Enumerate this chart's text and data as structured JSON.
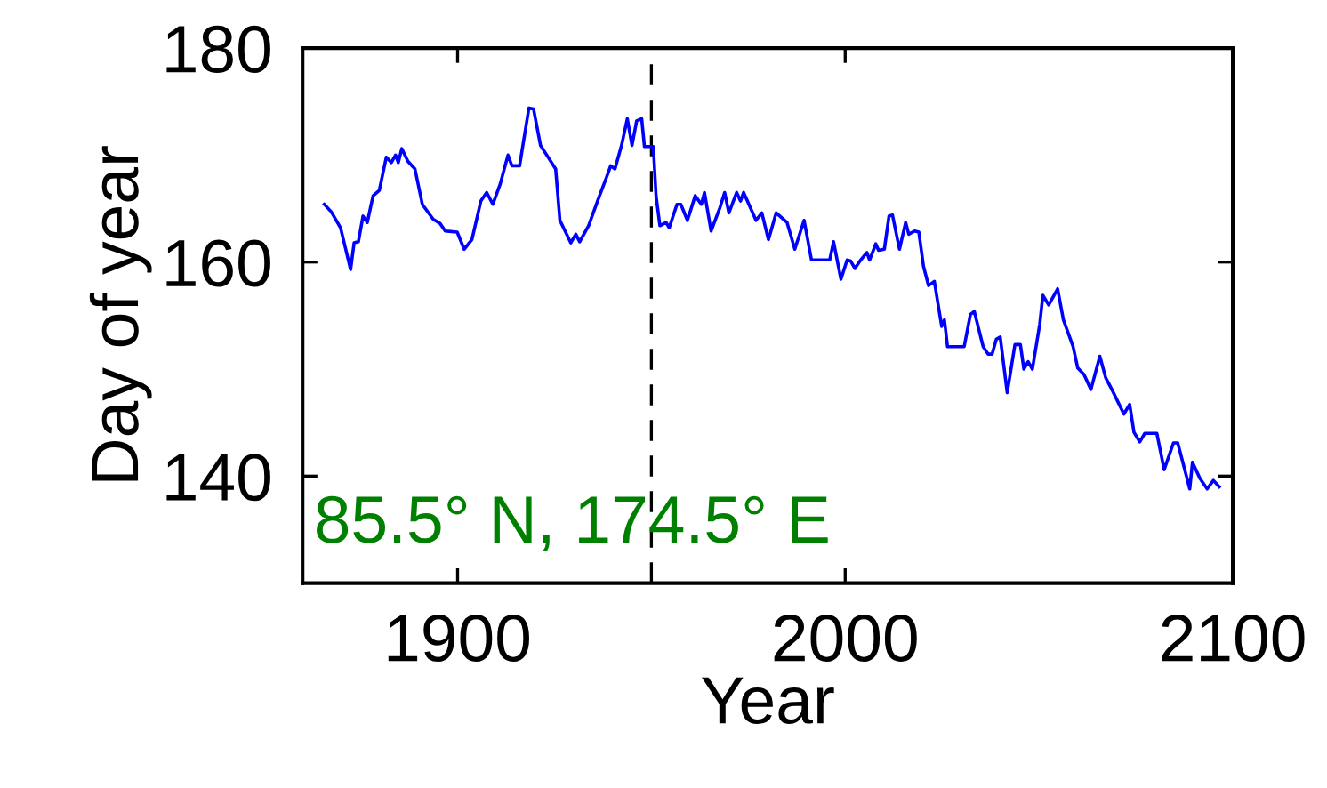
{
  "chart_data": {
    "type": "line",
    "xlabel": "Year",
    "ylabel": "Day of year",
    "xlim": [
      1860,
      2100
    ],
    "xticks": [
      1900,
      2000,
      2100
    ],
    "ylim": [
      130,
      180
    ],
    "yticks": [
      140,
      160,
      180
    ],
    "grid": false,
    "legend": false,
    "line_style": "solid",
    "marker": "none",
    "ref_lines": [
      {
        "axis": "x",
        "value": 1950,
        "color": "#000000",
        "line_style": "dashed"
      }
    ],
    "annotations": [
      "85.5° N, 174.5° E"
    ],
    "series": [
      {
        "color": "#0000ff",
        "x": [
          1865.6,
          1867.4,
          1869.8,
          1872.4,
          1873.3,
          1874.4,
          1875.6,
          1876.7,
          1878.2,
          1879.8,
          1881.6,
          1882.9,
          1884,
          1884.7,
          1885.6,
          1887.2,
          1889,
          1890.9,
          1893.7,
          1895.5,
          1896.8,
          1899.9,
          1901.7,
          1903.7,
          1906,
          1907.5,
          1909.1,
          1911,
          1913,
          1914,
          1916,
          1917.6,
          1918.4,
          1919.6,
          1921.4,
          1923,
          1925.3,
          1926.4,
          1929.2,
          1930.5,
          1931.5,
          1933.8,
          1936.1,
          1938.4,
          1939.5,
          1940.6,
          1942.3,
          1943.8,
          1945,
          1946.2,
          1947.5,
          1948.2,
          1950.5,
          1951.2,
          1952.2,
          1953.8,
          1954.6,
          1956.6,
          1957.6,
          1959.3,
          1961.3,
          1962.9,
          1963.7,
          1965.4,
          1967.7,
          1968.9,
          1970,
          1972,
          1973,
          1973.8,
          1977,
          1978.5,
          1980.2,
          1982.2,
          1985,
          1987,
          1989.4,
          1991.3,
          1996,
          1997,
          1998.9,
          2000.5,
          2001.4,
          2002.5,
          2004,
          2005.6,
          2006.3,
          2007.9,
          2008.6,
          2010.1,
          2011.3,
          2012.2,
          2014,
          2015.6,
          2016.4,
          2017.9,
          2019,
          2020.2,
          2021.5,
          2023,
          2024.9,
          2025.6,
          2026.4,
          2030.7,
          2032.3,
          2033.3,
          2035.6,
          2036.9,
          2037.9,
          2039,
          2040,
          2041.8,
          2043.8,
          2045.2,
          2046.1,
          2047.2,
          2048.3,
          2050.2,
          2051,
          2052.5,
          2054.8,
          2056.3,
          2058.8,
          2060,
          2061.6,
          2063.4,
          2065.7,
          2067.2,
          2068.8,
          2071.9,
          2073.4,
          2074.5,
          2076,
          2077.3,
          2080.4,
          2082.3,
          2084.7,
          2085.8,
          2088.9,
          2089.6,
          2091.5,
          2093.4,
          2095,
          2096.5
        ],
        "values": [
          165.4,
          164.7,
          163.2,
          159.3,
          161.8,
          161.9,
          164.3,
          163.7,
          166.2,
          166.7,
          169.8,
          169.3,
          170,
          169.3,
          170.6,
          169.4,
          168.7,
          165.4,
          164,
          163.6,
          162.9,
          162.8,
          161.2,
          162.1,
          165.7,
          166.5,
          165.4,
          167.3,
          170,
          169,
          169,
          172.6,
          174.4,
          174.3,
          170.9,
          170,
          168.7,
          163.9,
          161.8,
          162.6,
          161.9,
          163.4,
          165.7,
          167.9,
          169,
          168.7,
          170.9,
          173.4,
          170.9,
          173.2,
          173.4,
          170.8,
          170.8,
          166.2,
          163.4,
          163.7,
          163.2,
          165.4,
          165.4,
          163.9,
          166.2,
          165.4,
          166.5,
          162.9,
          165.1,
          166.5,
          164.6,
          166.5,
          165.7,
          166.5,
          163.9,
          164.6,
          162.1,
          164.6,
          163.7,
          161.2,
          163.9,
          160.2,
          160.2,
          161.9,
          158.4,
          160.2,
          160.1,
          159.4,
          160.2,
          160.9,
          160.2,
          161.7,
          161.1,
          161.2,
          164.3,
          164.4,
          161.2,
          163.7,
          162.6,
          162.9,
          162.8,
          159.6,
          157.8,
          158.2,
          154,
          154.6,
          152.1,
          152.1,
          155.1,
          155.4,
          152.1,
          151.4,
          151.4,
          152.8,
          153,
          147.8,
          152.3,
          152.3,
          150,
          150.7,
          150,
          154.2,
          156.9,
          156,
          157.5,
          154.6,
          152.1,
          150.1,
          149.5,
          148.1,
          151.2,
          149.2,
          148.1,
          145.8,
          146.7,
          144.1,
          143.2,
          144,
          144,
          140.6,
          143.1,
          143.1,
          138.8,
          141.3,
          139.8,
          138.8,
          139.6,
          139
        ]
      }
    ]
  }
}
